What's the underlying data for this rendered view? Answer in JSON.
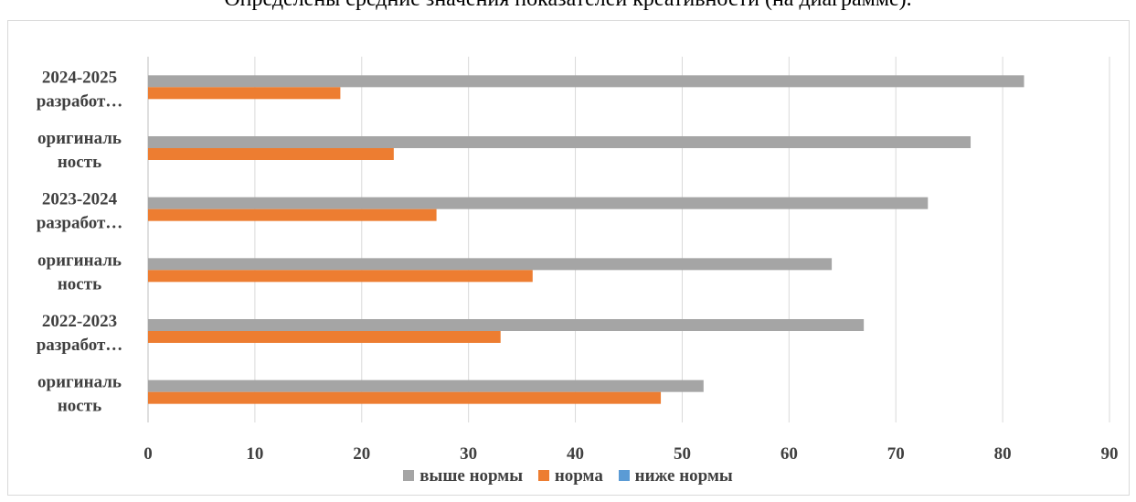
{
  "caption": "Определены средние значения показателей креативности (на диаграмме).",
  "chart_data": {
    "type": "bar",
    "orientation": "horizontal",
    "categories_top_to_bottom": [
      [
        "2024-2025",
        "разработ…"
      ],
      [
        "оригиналь",
        "ность"
      ],
      [
        "2023-2024",
        "разработ…"
      ],
      [
        "оригиналь",
        "ность"
      ],
      [
        "2022-2023",
        "разработ…"
      ],
      [
        "оригиналь",
        "ность"
      ]
    ],
    "series": [
      {
        "name": "выше нормы",
        "color": "#a5a5a5",
        "values": [
          82,
          77,
          73,
          64,
          67,
          52
        ]
      },
      {
        "name": "норма",
        "color": "#ed7d31",
        "values": [
          18,
          23,
          27,
          36,
          33,
          48
        ]
      },
      {
        "name": "ниже нормы",
        "color": "#5b9bd5",
        "values": [
          0,
          0,
          0,
          0,
          0,
          0
        ]
      }
    ],
    "xlim": [
      0,
      90
    ],
    "xticks": [
      "0",
      "10",
      "20",
      "30",
      "40",
      "50",
      "60",
      "70",
      "80",
      "90"
    ],
    "grid": "vertical",
    "legend": "bottom"
  }
}
